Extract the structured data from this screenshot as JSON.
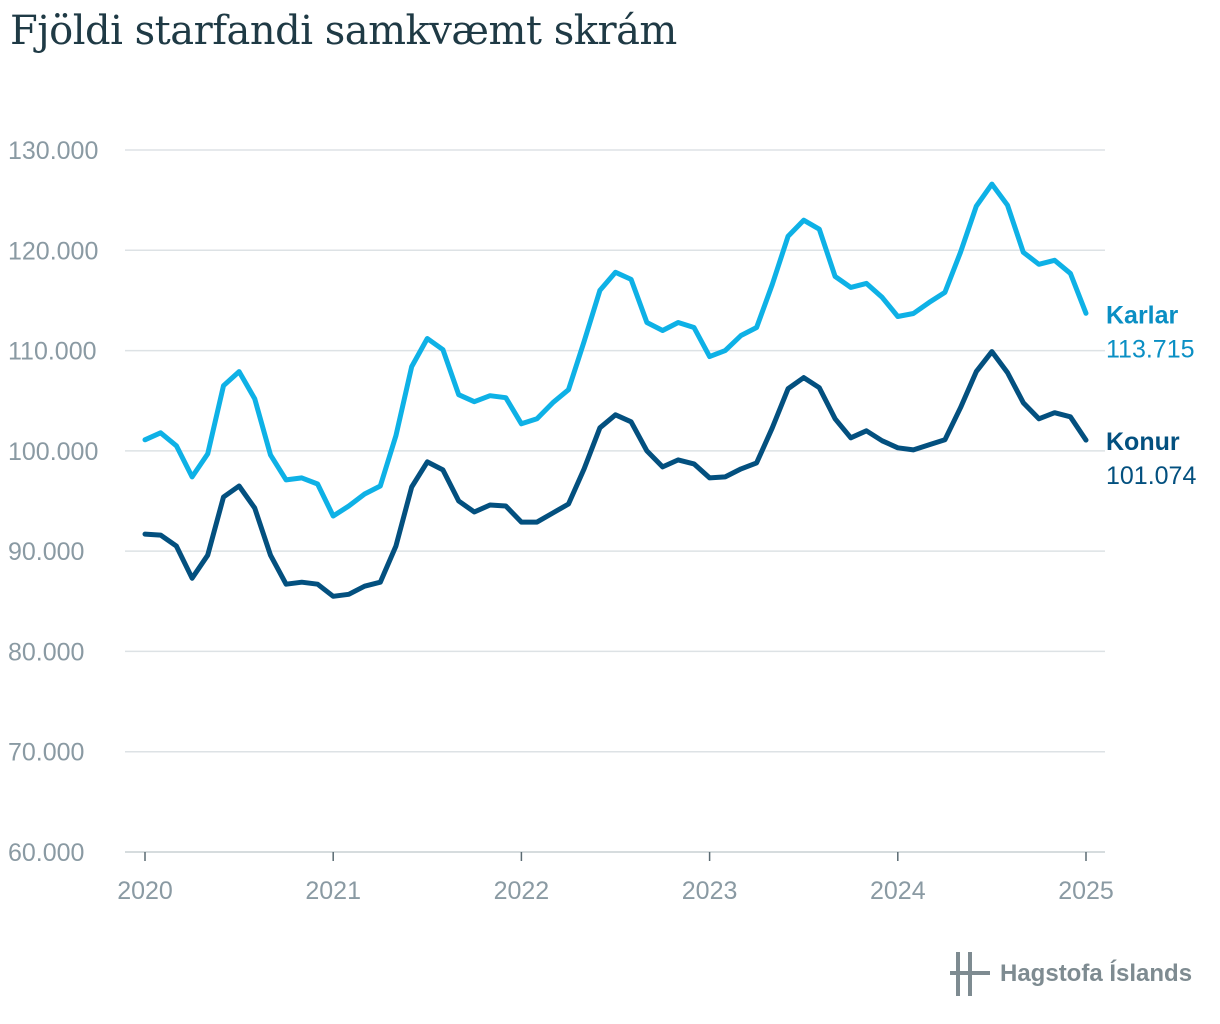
{
  "title": "Fjöldi starfandi samkvæmt skrám",
  "source": "Hagstofa Íslands",
  "colors": {
    "karlar": "#0eb1e6",
    "konur": "#03507f",
    "grid": "#dde2e5",
    "tick": "#8a9aa3"
  },
  "chart_data": {
    "type": "line",
    "title": "Fjöldi starfandi samkvæmt skrám",
    "xlabel": "",
    "ylabel": "",
    "x_ticks": [
      "2020",
      "2021",
      "2022",
      "2023",
      "2024",
      "2025"
    ],
    "y_ticks": [
      "60.000",
      "70.000",
      "80.000",
      "90.000",
      "100.000",
      "110.000",
      "120.000",
      "130.000"
    ],
    "ylim": [
      60000,
      130000
    ],
    "xlim": [
      2020,
      2025
    ],
    "grid": true,
    "x": [
      2020.0,
      2020.083,
      2020.167,
      2020.25,
      2020.333,
      2020.417,
      2020.5,
      2020.583,
      2020.667,
      2020.75,
      2020.833,
      2020.917,
      2021.0,
      2021.083,
      2021.167,
      2021.25,
      2021.333,
      2021.417,
      2021.5,
      2021.583,
      2021.667,
      2021.75,
      2021.833,
      2021.917,
      2022.0,
      2022.083,
      2022.167,
      2022.25,
      2022.333,
      2022.417,
      2022.5,
      2022.583,
      2022.667,
      2022.75,
      2022.833,
      2022.917,
      2023.0,
      2023.083,
      2023.167,
      2023.25,
      2023.333,
      2023.417,
      2023.5,
      2023.583,
      2023.667,
      2023.75,
      2023.833,
      2023.917,
      2024.0,
      2024.083,
      2024.167,
      2024.25,
      2024.333,
      2024.417,
      2024.5,
      2024.583,
      2024.667,
      2024.75,
      2024.833,
      2024.917,
      2025.0
    ],
    "series": [
      {
        "name": "Karlar",
        "end_label": "113.715",
        "values": [
          101100,
          101800,
          100500,
          97400,
          99700,
          106500,
          107900,
          105200,
          99600,
          97100,
          97300,
          96700,
          93500,
          94500,
          95700,
          96500,
          101500,
          108400,
          111200,
          110100,
          105600,
          104900,
          105500,
          105300,
          102700,
          103200,
          104800,
          106100,
          110900,
          116000,
          117800,
          117100,
          112800,
          112000,
          112800,
          112300,
          109400,
          110000,
          111500,
          112300,
          116600,
          121400,
          123000,
          122100,
          117400,
          116300,
          116700,
          115300,
          113400,
          113700,
          114800,
          115800,
          119800,
          124400,
          126600,
          124500,
          119800,
          118600,
          119000,
          117700,
          113715
        ]
      },
      {
        "name": "Konur",
        "end_label": "101.074",
        "values": [
          91700,
          91600,
          90500,
          87300,
          89600,
          95400,
          96500,
          94300,
          89600,
          86700,
          86900,
          86700,
          85500,
          85700,
          86500,
          86900,
          90500,
          96400,
          98900,
          98100,
          95000,
          93900,
          94600,
          94500,
          92900,
          92900,
          93800,
          94700,
          98200,
          102300,
          103600,
          102900,
          100000,
          98400,
          99100,
          98700,
          97300,
          97400,
          98200,
          98800,
          102300,
          106200,
          107300,
          106300,
          103200,
          101300,
          102000,
          101000,
          100300,
          100100,
          100600,
          101100,
          104300,
          107900,
          109900,
          107800,
          104800,
          103200,
          103800,
          103400,
          101074
        ]
      }
    ]
  }
}
